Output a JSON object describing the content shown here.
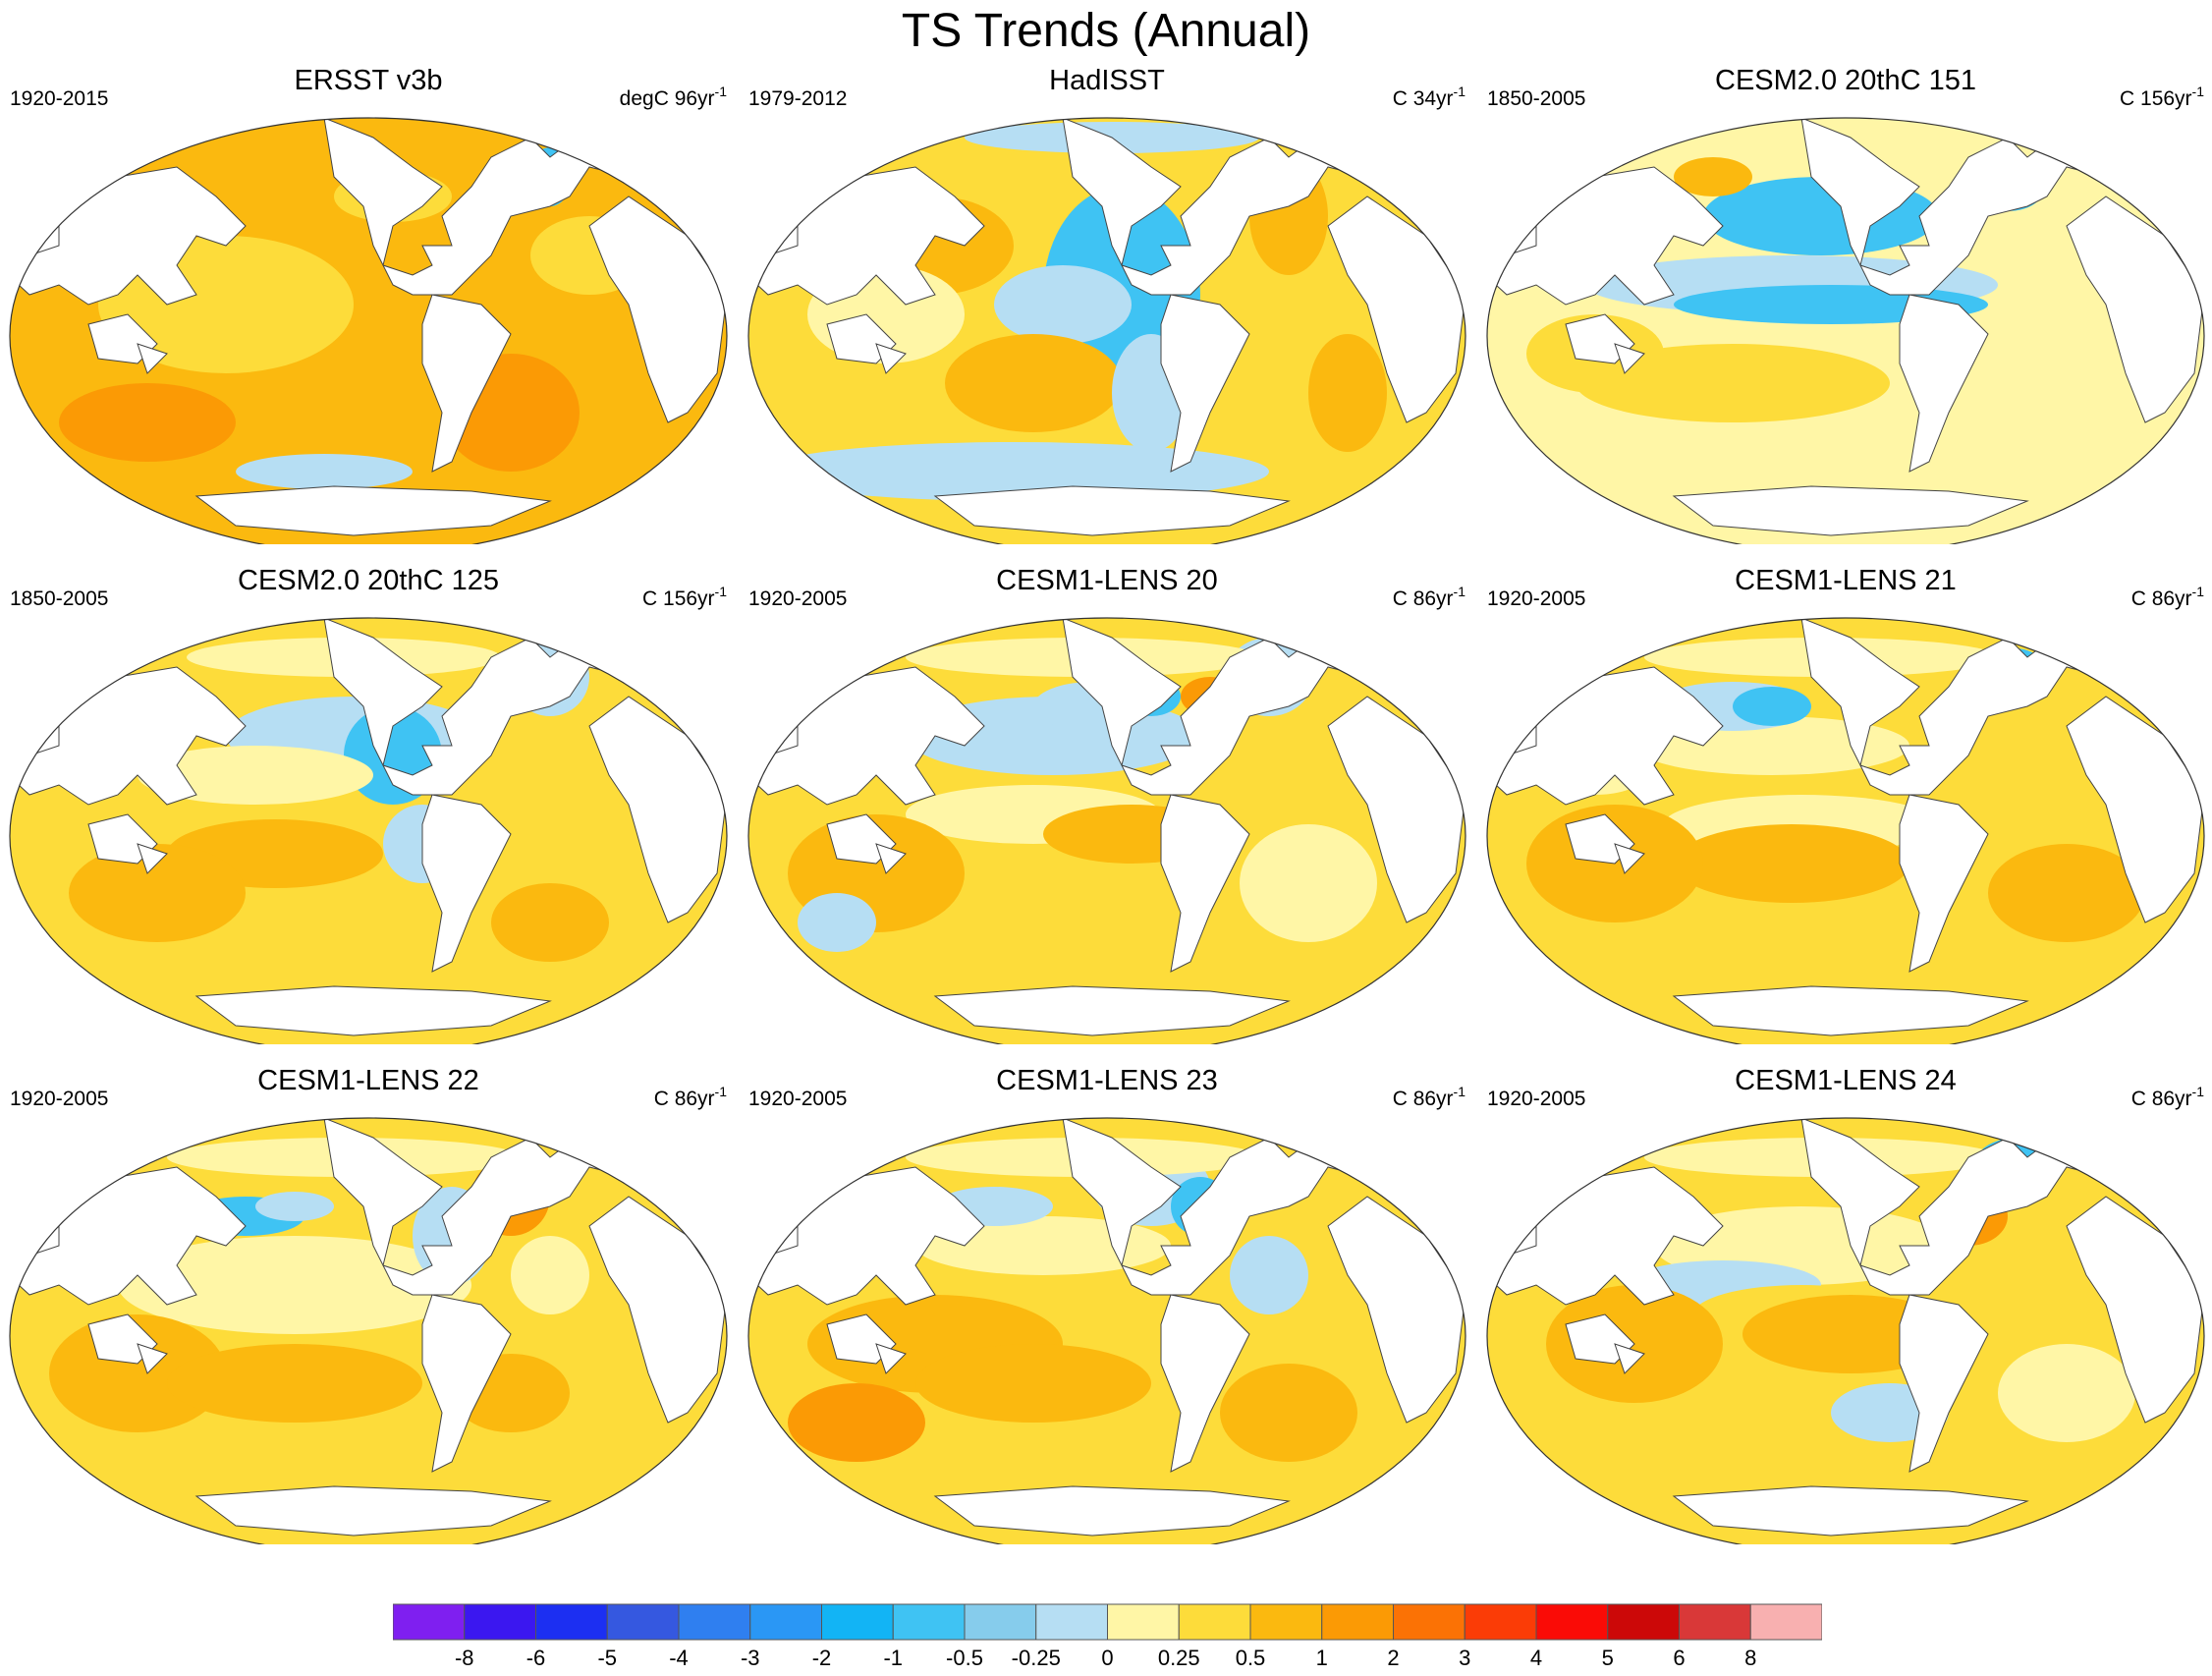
{
  "title": "TS Trends (Annual)",
  "panels": [
    {
      "title": "ERSST v3b",
      "period": "1920-2015",
      "units": "degC 96yr",
      "units_sup": "-1",
      "pattern": "obs-warm"
    },
    {
      "title": "HadISST",
      "period": "1979-2012",
      "units": "C 34yr",
      "units_sup": "-1",
      "pattern": "pdo-cool"
    },
    {
      "title": "CESM2.0 20thC 151",
      "period": "1850-2005",
      "units": "C 156yr",
      "units_sup": "-1",
      "pattern": "pacific-cool"
    },
    {
      "title": "CESM2.0 20thC 125",
      "period": "1850-2005",
      "units": "C 156yr",
      "units_sup": "-1",
      "pattern": "mixed-a"
    },
    {
      "title": "CESM1-LENS 20",
      "period": "1920-2005",
      "units": "C 86yr",
      "units_sup": "-1",
      "pattern": "mixed-b"
    },
    {
      "title": "CESM1-LENS 21",
      "period": "1920-2005",
      "units": "C 86yr",
      "units_sup": "-1",
      "pattern": "mixed-c"
    },
    {
      "title": "CESM1-LENS 22",
      "period": "1920-2005",
      "units": "C 86yr",
      "units_sup": "-1",
      "pattern": "mixed-d"
    },
    {
      "title": "CESM1-LENS 23",
      "period": "1920-2005",
      "units": "C 86yr",
      "units_sup": "-1",
      "pattern": "mixed-e"
    },
    {
      "title": "CESM1-LENS 24",
      "period": "1920-2005",
      "units": "C 86yr",
      "units_sup": "-1",
      "pattern": "mixed-f"
    }
  ],
  "colorbar": {
    "colors": [
      "#7f1ff0",
      "#3b17f0",
      "#1c2ff2",
      "#3558e0",
      "#2f7ff0",
      "#2a97f5",
      "#12b4f5",
      "#3fc3f3",
      "#86ccec",
      "#b6def3",
      "#fff6a6",
      "#fddc3a",
      "#fbb90f",
      "#fb9a05",
      "#fb7205",
      "#fb3c06",
      "#fa0b06",
      "#cc0808",
      "#d93838",
      "#f8b0b0"
    ],
    "labels": [
      "-8",
      "-6",
      "-5",
      "-4",
      "-3",
      "-2",
      "-1",
      "-0.5",
      "-0.25",
      "0",
      "0.25",
      "0.5",
      "1",
      "2",
      "3",
      "4",
      "5",
      "6",
      "8"
    ]
  }
}
